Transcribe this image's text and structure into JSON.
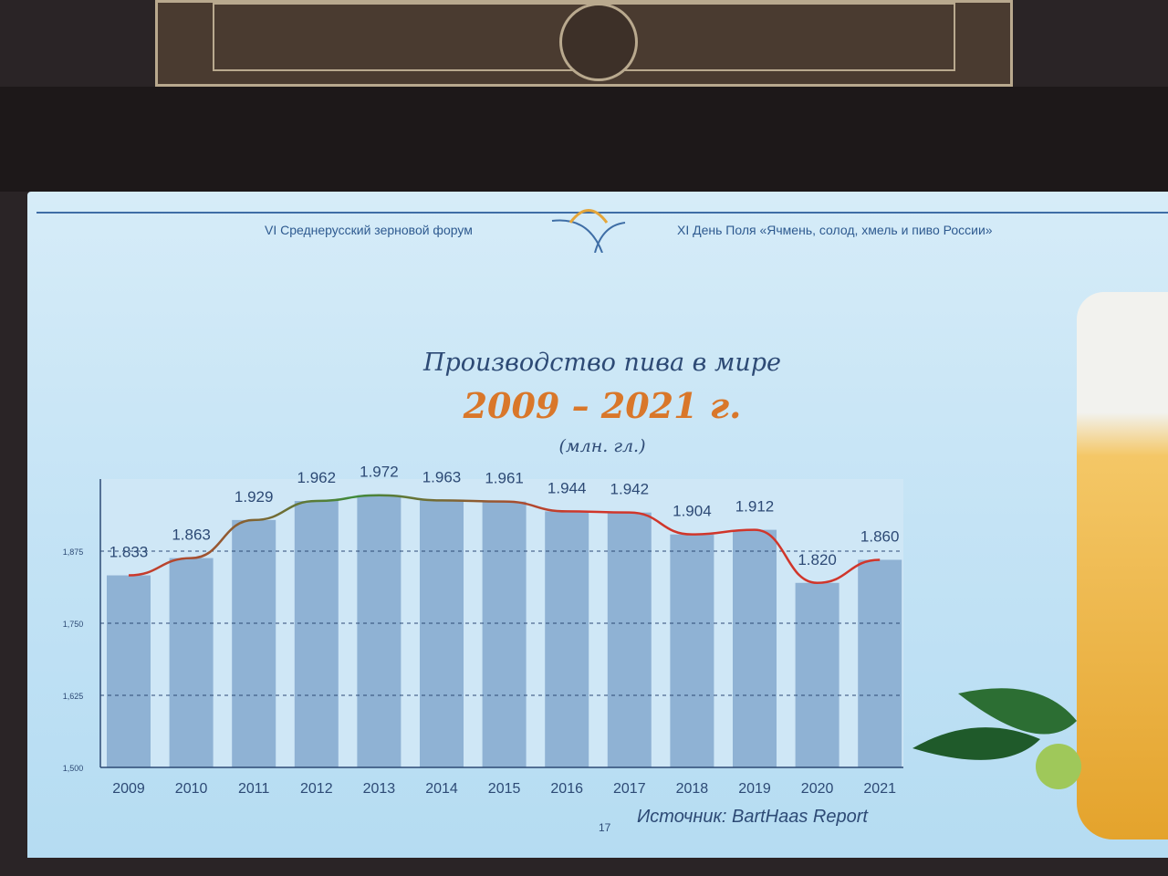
{
  "slide": {
    "header_left": "VI Среднерусский зерновой форум",
    "header_right": "XI День Поля «Ячмень, солод, хмель и пиво России»",
    "page_number": "17",
    "source": "Источник: BartHaas Report"
  },
  "chart_data": {
    "type": "bar",
    "title": "Производство пива в мире",
    "subtitle": "2009 – 2021 г.",
    "unit": "(млн. гл.)",
    "categories": [
      "2009",
      "2010",
      "2011",
      "2012",
      "2013",
      "2014",
      "2015",
      "2016",
      "2017",
      "2018",
      "2019",
      "2020",
      "2021"
    ],
    "values": [
      1833,
      1863,
      1929,
      1962,
      1972,
      1963,
      1961,
      1944,
      1942,
      1904,
      1912,
      1820,
      1860
    ],
    "data_labels": [
      "1.833",
      "1.863",
      "1.929",
      "1.962",
      "1.972",
      "1.963",
      "1.961",
      "1.944",
      "1.942",
      "1.904",
      "1.912",
      "1.820",
      "1.860"
    ],
    "y_ticks": [
      1500,
      1625,
      1750,
      1875
    ],
    "y_tick_labels": [
      "1,500",
      "1,625",
      "1,750",
      "1,875"
    ],
    "ylim": [
      1500,
      2000
    ],
    "grid": "dashed horizontal",
    "overlay": "smoothed trend line through bar tops",
    "colors": {
      "bar": "#8fb2d4",
      "line_green": "#3f8a3a",
      "line_red": "#d0362b",
      "title": "#2d4a75",
      "subtitle": "#d9772a"
    }
  }
}
